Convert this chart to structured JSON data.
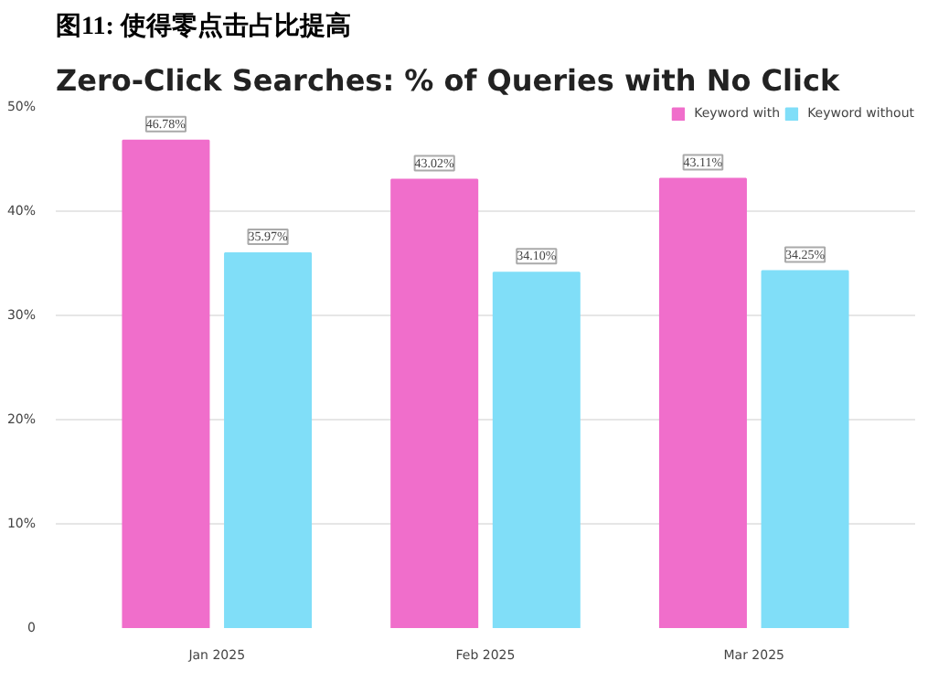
{
  "chart_data": {
    "type": "bar",
    "title": "图11: 使得零点击占比提高",
    "subtitle": "Zero-Click Searches: % of Queries with No Click",
    "categories": [
      "Jan 2025",
      "Feb 2025",
      "Mar 2025"
    ],
    "series": [
      {
        "name": "Keyword with",
        "color": "#f06ecb",
        "values": [
          46.78,
          43.02,
          43.11
        ],
        "value_labels": [
          "46.78%",
          "43.02%",
          "43.11%"
        ]
      },
      {
        "name": "Keyword without",
        "color": "#80def8",
        "values": [
          35.97,
          34.1,
          34.25
        ],
        "value_labels": [
          "35.97%",
          "34.10%",
          "34.25%"
        ]
      }
    ],
    "ylim": [
      0,
      50
    ],
    "yticks": [
      0,
      {
        "value": 10,
        "label": "10%"
      },
      {
        "value": 20,
        "label": "20%"
      },
      {
        "value": 30,
        "label": "30%"
      },
      {
        "value": 40,
        "label": "40%"
      },
      {
        "value": 50,
        "label": "50%"
      }
    ],
    "grid": "y",
    "legend": "top right"
  }
}
